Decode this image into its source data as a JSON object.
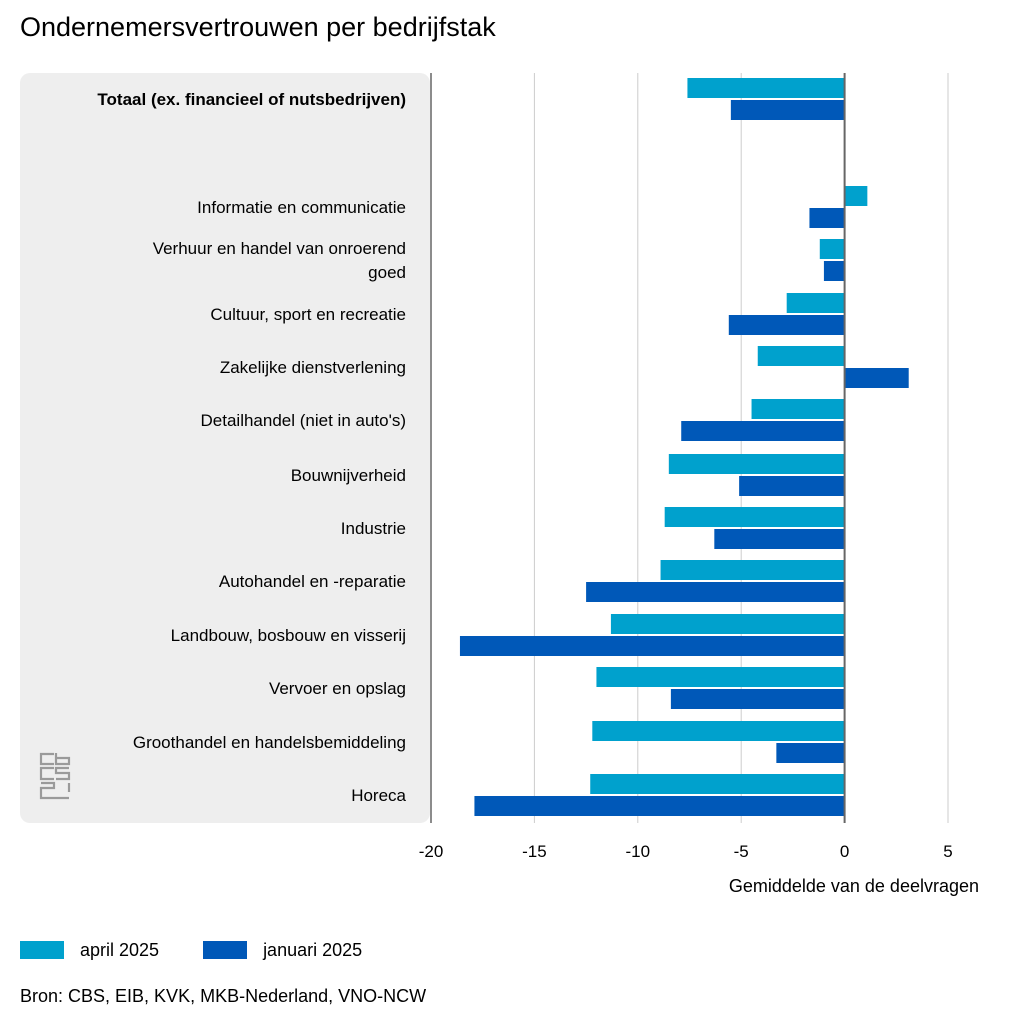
{
  "title": "Ondernemersvertrouwen per bedrijfstak",
  "source": "Bron: CBS, EIB, KVK, MKB-Nederland, VNO-NCW",
  "logo_icon": "cbs-logo-icon",
  "colors": {
    "april": "#00a1cd",
    "januari": "#0058b8",
    "grid": "#cccccc",
    "axis": "#666666",
    "panel": "#eeeeee"
  },
  "legend": [
    {
      "label": "april 2025",
      "color": "#00a1cd"
    },
    {
      "label": "januari 2025",
      "color": "#0058b8"
    }
  ],
  "chart_data": {
    "type": "bar",
    "orientation": "horizontal",
    "title": "Ondernemersvertrouwen per bedrijfstak",
    "xlabel": "Gemiddelde van de deelvragen",
    "ylabel": "",
    "xlim": [
      -20,
      5
    ],
    "xticks": [
      -20,
      -15,
      -10,
      -5,
      0,
      5
    ],
    "grid": true,
    "legend_position": "bottom-left",
    "categories": [
      "Totaal (ex. financieel of nutsbedrijven)",
      "Informatie en communicatie",
      "Verhuur en handel van onroerend goed",
      "Cultuur, sport en recreatie",
      "Zakelijke dienstverlening",
      "Detailhandel (niet in auto's)",
      "Bouwnijverheid",
      "Industrie",
      "Autohandel en -reparatie",
      "Landbouw, bosbouw en visserij",
      "Vervoer en opslag",
      "Groothandel en handelsbemiddeling",
      "Horeca"
    ],
    "series": [
      {
        "name": "april 2025",
        "values": [
          -7.6,
          1.1,
          -1.2,
          -2.8,
          -4.2,
          -4.5,
          -8.5,
          -8.7,
          -8.9,
          -11.3,
          -12.0,
          -12.2,
          -12.3
        ]
      },
      {
        "name": "januari 2025",
        "values": [
          -5.5,
          -1.7,
          -1.0,
          -5.6,
          3.1,
          -7.9,
          -5.1,
          -6.3,
          -12.5,
          -18.6,
          -8.4,
          -3.3,
          -17.9
        ]
      }
    ]
  }
}
